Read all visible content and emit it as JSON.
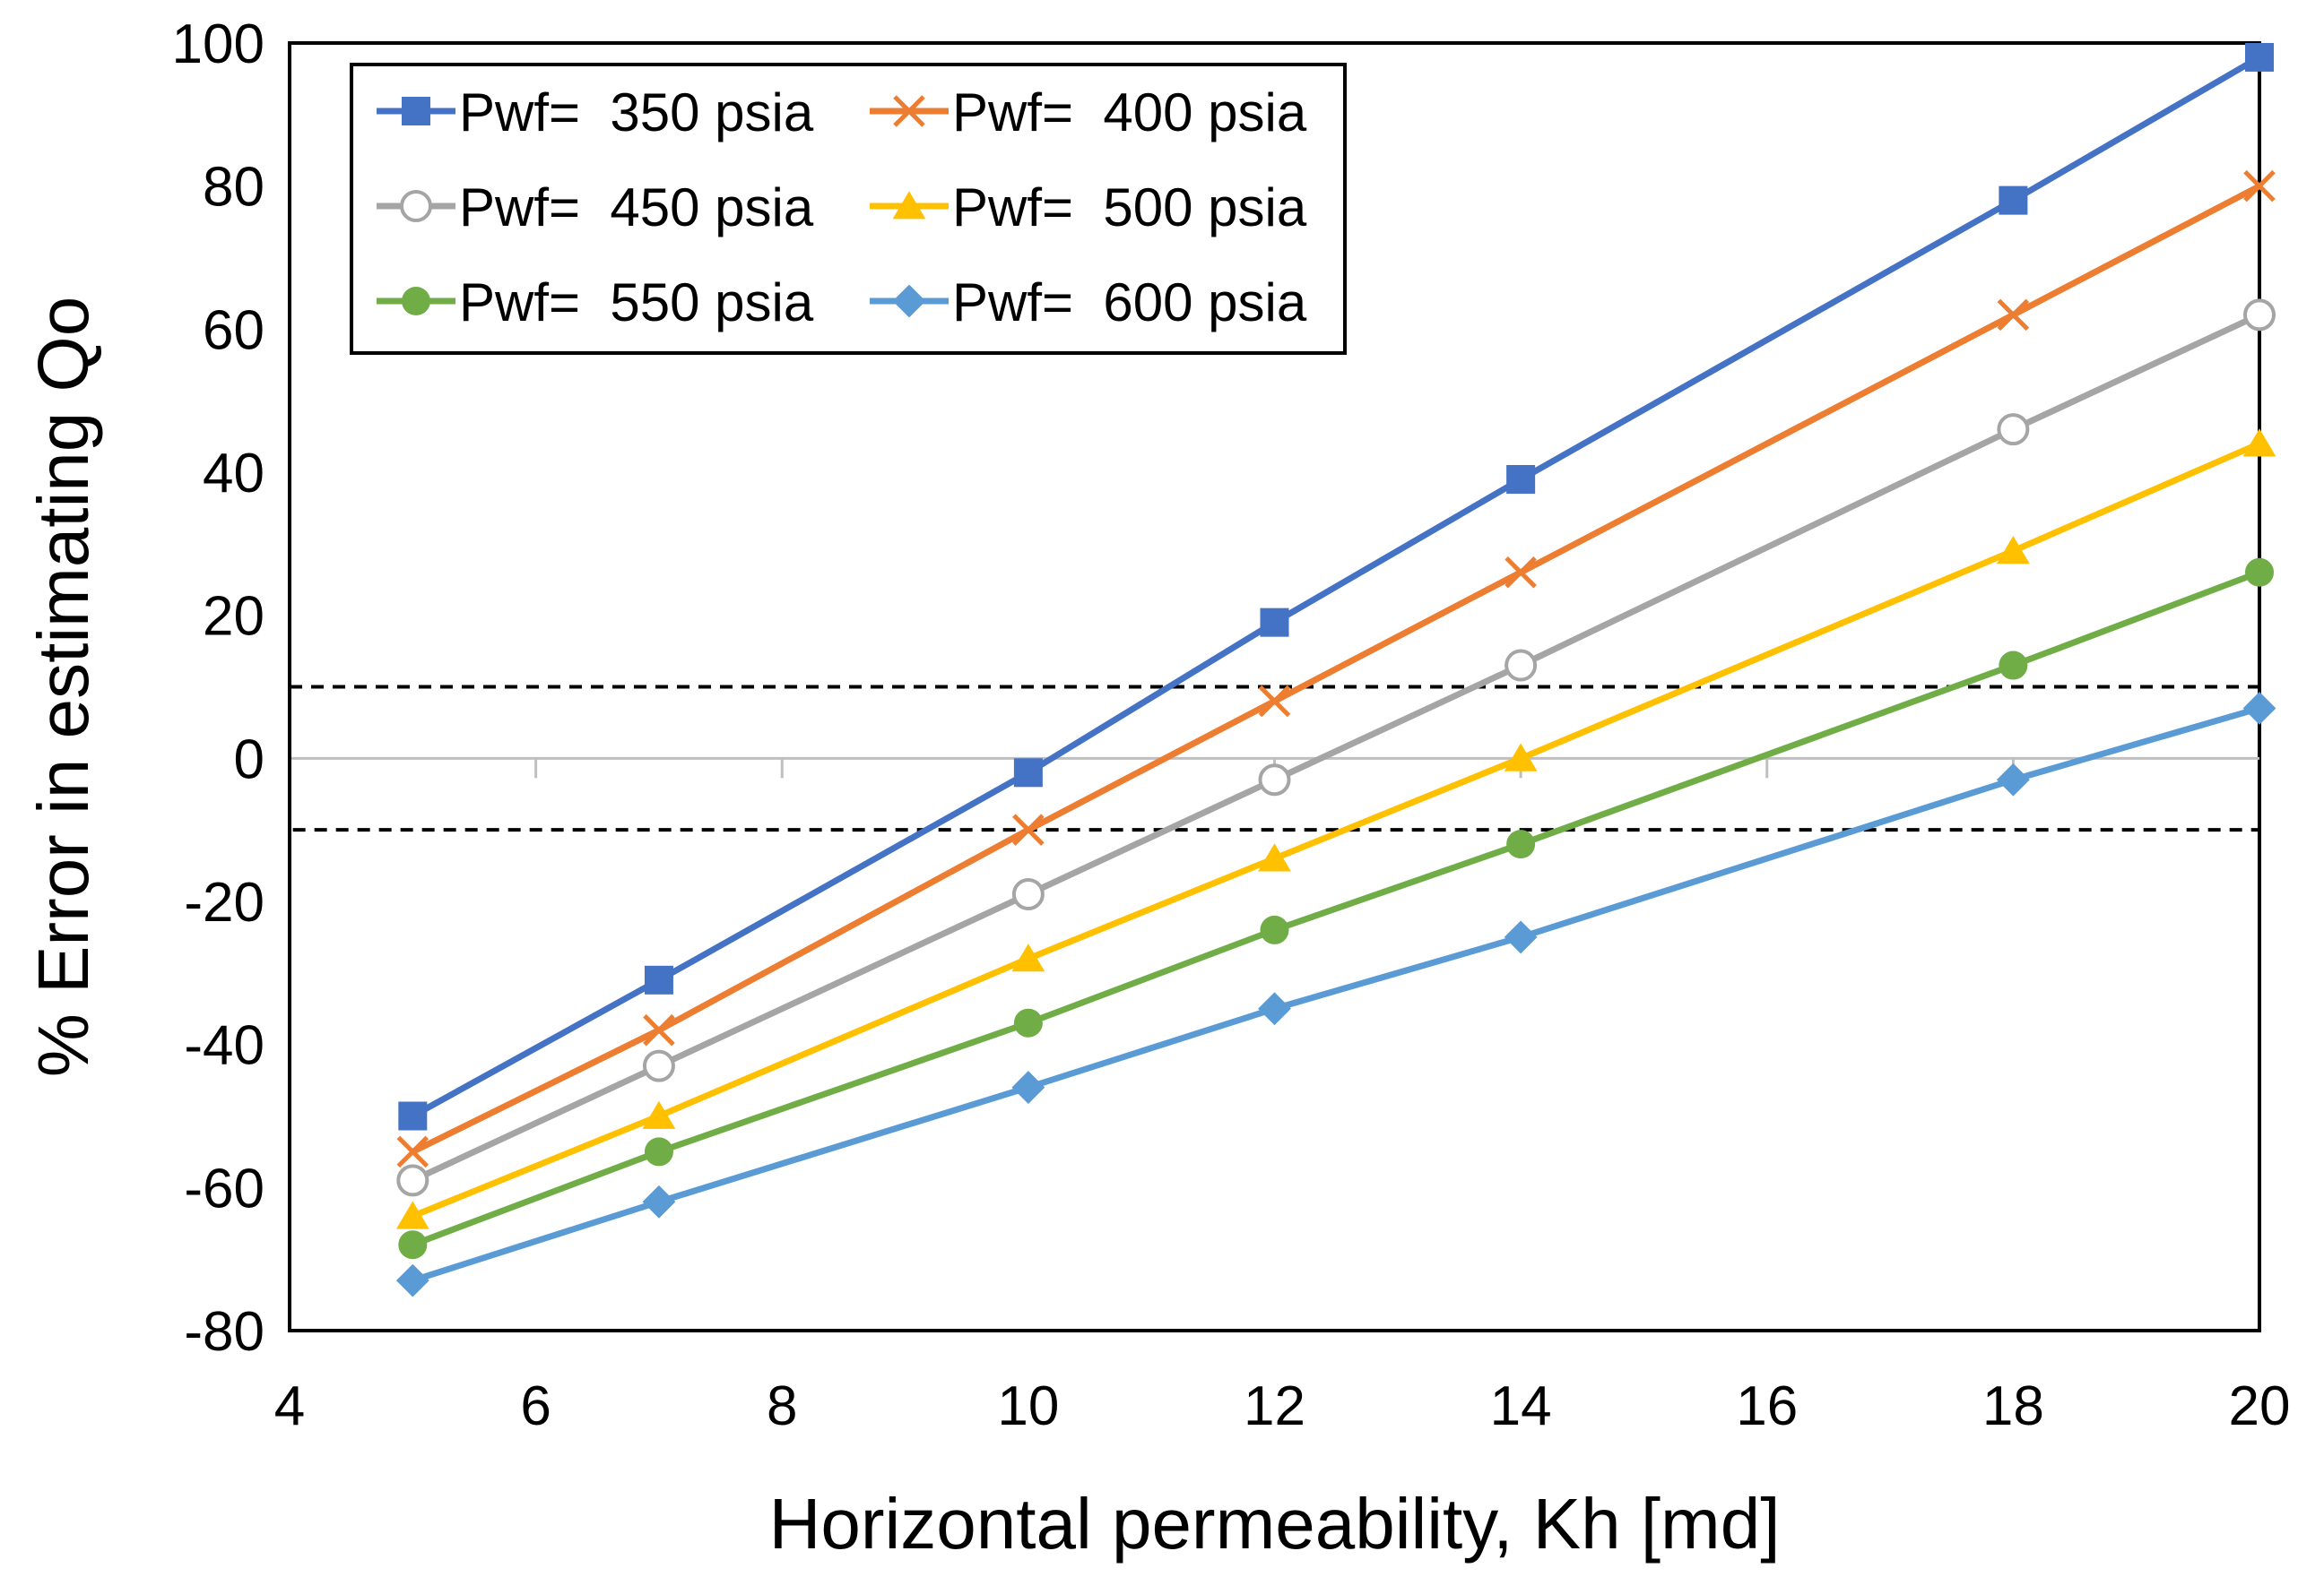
{
  "chart_data": {
    "type": "line",
    "title": "",
    "xlabel": "Horizontal permeability, Kh [md]",
    "ylabel": "% Error in estimating Qo",
    "xlim": [
      4,
      20
    ],
    "ylim": [
      -80,
      100
    ],
    "xticks": [
      4,
      6,
      8,
      10,
      12,
      14,
      16,
      18,
      20
    ],
    "yticks": [
      -80,
      -60,
      -40,
      -20,
      0,
      20,
      40,
      60,
      80,
      100
    ],
    "x": [
      5,
      7,
      10,
      12,
      14,
      18,
      20
    ],
    "series": [
      {
        "name": "Pwf=  350 psia",
        "marker": "square",
        "color": "#4472C4",
        "values": [
          -50,
          -31,
          -2,
          19,
          39,
          78,
          98
        ]
      },
      {
        "name": "Pwf=  400 psia",
        "marker": "x",
        "color": "#ED7D31",
        "values": [
          -55,
          -38,
          -10,
          8,
          26,
          62,
          80
        ]
      },
      {
        "name": "Pwf=  450 psia",
        "marker": "circle-open",
        "color": "#A5A5A5",
        "values": [
          -59,
          -43,
          -19,
          -3,
          13,
          46,
          62
        ]
      },
      {
        "name": "Pwf=  500 psia",
        "marker": "triangle",
        "color": "#FFC000",
        "values": [
          -64,
          -50,
          -28,
          -14,
          0,
          29,
          44
        ]
      },
      {
        "name": "Pwf=  550 psia",
        "marker": "circle",
        "color": "#70AD47",
        "values": [
          -68,
          -55,
          -37,
          -24,
          -12,
          13,
          26
        ]
      },
      {
        "name": "Pwf=  600 psia",
        "marker": "diamond",
        "color": "#5B9BD5",
        "values": [
          -73,
          -62,
          -46,
          -35,
          -25,
          -3,
          7
        ]
      }
    ],
    "annotation": {
      "type": "dashed-box",
      "y_range": [
        -10,
        10
      ],
      "x_range": [
        4,
        20
      ]
    },
    "grid": false,
    "legend_placement": "top-left"
  }
}
